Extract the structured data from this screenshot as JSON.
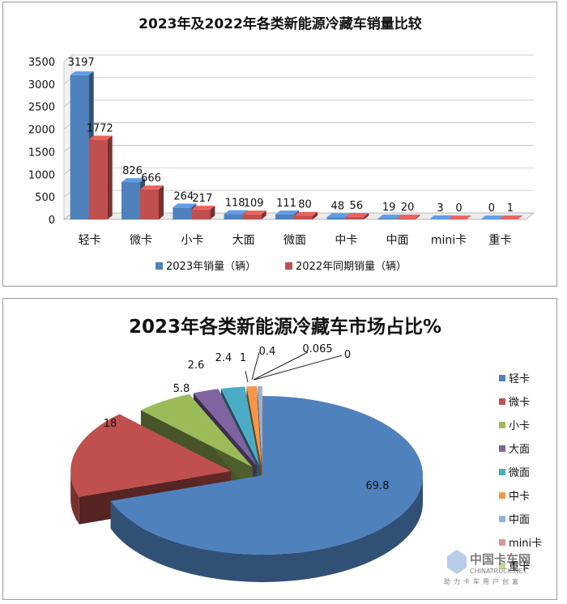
{
  "chart_data": [
    {
      "type": "bar",
      "title": "2023年及2022年各类新能源冷藏车销量比较",
      "categories": [
        "轻卡",
        "微卡",
        "小卡",
        "大面",
        "微面",
        "中卡",
        "中面",
        "mini卡",
        "重卡"
      ],
      "series": [
        {
          "name": "2023年销量（辆）",
          "values": [
            3197,
            826,
            264,
            118,
            111,
            48,
            19,
            3,
            0
          ],
          "color": "#4f81bd"
        },
        {
          "name": "2022年同期销量（辆）",
          "values": [
            1772,
            666,
            217,
            109,
            80,
            56,
            20,
            0,
            1
          ],
          "color": "#c0504d"
        }
      ],
      "ylim": [
        0,
        3500
      ],
      "yticks": [
        "0",
        "500",
        "1000",
        "1500",
        "2000",
        "2500",
        "3000",
        "3500"
      ],
      "grid": true,
      "legend": "bottom"
    },
    {
      "type": "pie",
      "title": "2023年各类新能源冷藏车市场占比%",
      "labels": [
        "轻卡",
        "微卡",
        "小卡",
        "大面",
        "微面",
        "中卡",
        "中面",
        "mini卡",
        "重卡"
      ],
      "values": [
        69.8,
        18,
        5.8,
        2.6,
        2.4,
        1,
        0.4,
        0.065,
        0
      ],
      "value_labels": [
        "69.8",
        "18",
        "5.8",
        "2.6",
        "2.4",
        "1",
        "0.4",
        "0.065",
        "0"
      ],
      "colors": [
        "#4f81bd",
        "#c0504d",
        "#9bbb59",
        "#8064a2",
        "#4bacc6",
        "#f79646",
        "#95b3d7",
        "#d99694",
        "#c3d69b"
      ],
      "legend": "right"
    }
  ],
  "watermark": {
    "title": "中国卡车网",
    "sub": "CHINATRUCK.NET",
    "slogan": "助力卡车用户创富"
  }
}
